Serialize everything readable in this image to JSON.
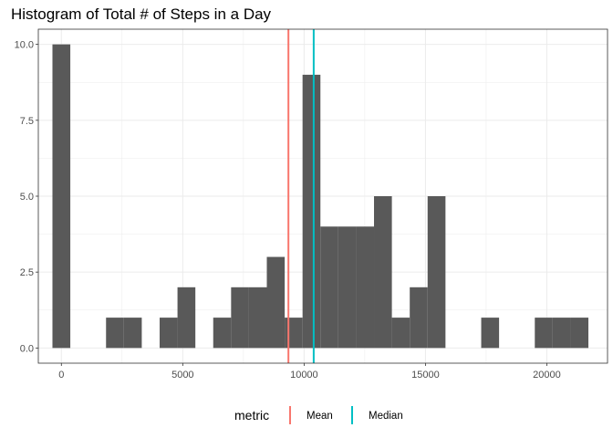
{
  "chart_data": {
    "type": "histogram",
    "title": "Histogram of Total # of Steps in a Day",
    "xlabel": "",
    "ylabel": "",
    "xlim": [
      -950,
      22500
    ],
    "ylim": [
      -0.5,
      10.5
    ],
    "x_ticks": [
      0,
      5000,
      10000,
      15000,
      20000
    ],
    "y_ticks": [
      0.0,
      2.5,
      5.0,
      7.5,
      10.0
    ],
    "y_tick_labels": [
      "0.0",
      "2.5",
      "5.0",
      "7.5",
      "10.0"
    ],
    "grid": true,
    "bin_width": 736,
    "bins": [
      {
        "center": 0,
        "count": 10
      },
      {
        "center": 736,
        "count": 0
      },
      {
        "center": 1472,
        "count": 0
      },
      {
        "center": 2208,
        "count": 1
      },
      {
        "center": 2944,
        "count": 1
      },
      {
        "center": 3680,
        "count": 0
      },
      {
        "center": 4416,
        "count": 1
      },
      {
        "center": 5152,
        "count": 2
      },
      {
        "center": 5888,
        "count": 0
      },
      {
        "center": 6624,
        "count": 1
      },
      {
        "center": 7360,
        "count": 2
      },
      {
        "center": 8096,
        "count": 2
      },
      {
        "center": 8832,
        "count": 3
      },
      {
        "center": 9568,
        "count": 1
      },
      {
        "center": 10304,
        "count": 9
      },
      {
        "center": 11040,
        "count": 4
      },
      {
        "center": 11776,
        "count": 4
      },
      {
        "center": 12512,
        "count": 4
      },
      {
        "center": 13248,
        "count": 5
      },
      {
        "center": 13984,
        "count": 1
      },
      {
        "center": 14720,
        "count": 2
      },
      {
        "center": 15456,
        "count": 5
      },
      {
        "center": 16192,
        "count": 0
      },
      {
        "center": 16928,
        "count": 0
      },
      {
        "center": 17664,
        "count": 1
      },
      {
        "center": 18400,
        "count": 0
      },
      {
        "center": 19136,
        "count": 0
      },
      {
        "center": 19872,
        "count": 1
      },
      {
        "center": 20608,
        "count": 1
      },
      {
        "center": 21344,
        "count": 1
      }
    ],
    "bar_color": "#595959",
    "reference_lines": [
      {
        "name": "Mean",
        "value": 9354,
        "color": "#f8766d"
      },
      {
        "name": "Median",
        "value": 10395,
        "color": "#00bfc4"
      }
    ],
    "legend": {
      "title": "metric",
      "position": "bottom",
      "entries": [
        "Mean",
        "Median"
      ]
    }
  }
}
